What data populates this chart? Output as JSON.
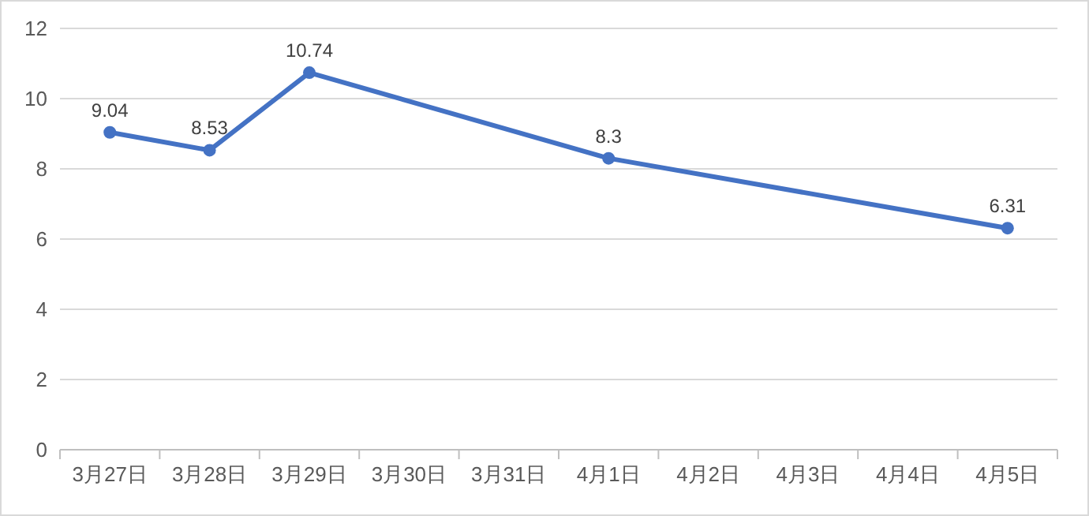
{
  "chart_data": {
    "type": "line",
    "categories": [
      "3月27日",
      "3月28日",
      "3月29日",
      "3月30日",
      "3月31日",
      "4月1日",
      "4月2日",
      "4月3日",
      "4月4日",
      "4月5日"
    ],
    "series": [
      {
        "color": "#4472c4",
        "values": [
          9.04,
          8.53,
          10.74,
          null,
          null,
          8.3,
          null,
          null,
          null,
          6.31
        ]
      }
    ],
    "ylim": [
      0,
      12
    ],
    "yticks": [
      0,
      2,
      4,
      6,
      8,
      10,
      12
    ],
    "grid": "y",
    "marker": "circle",
    "line_style": "solid",
    "data_labels": true
  }
}
